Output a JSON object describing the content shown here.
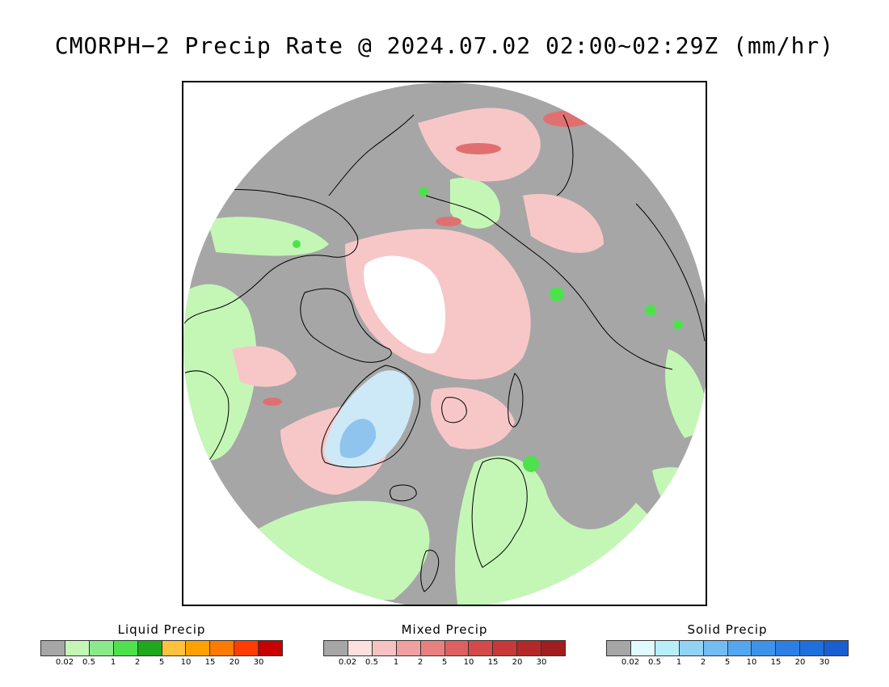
{
  "title": "CMORPH−2 Precip Rate @ 2024.07.02 02:00~02:29Z (mm/hr)",
  "map": {
    "projection": "polar-stereographic-north",
    "background_color": "#a6a6a6",
    "liquid_color": "#c4f7b6",
    "liquid_heavy_color": "#4de24d",
    "mixed_color": "#f7c7c7",
    "mixed_heavy_color": "#e07070",
    "solid_color": "#cde9f7",
    "solid_heavy_color": "#8fc4ef",
    "ice_color": "#ffffff",
    "coast_color": "#000000"
  },
  "legends": [
    {
      "title": "Liquid Precip",
      "colors": [
        "#a6a6a6",
        "#c4f7b6",
        "#8be88b",
        "#4de24d",
        "#1fa81f",
        "#ffc23d",
        "#ffa100",
        "#ff7a00",
        "#ff3d00",
        "#c80000"
      ],
      "ticks": [
        "0.02",
        "0.5",
        "1",
        "2",
        "5",
        "10",
        "15",
        "20",
        "30"
      ]
    },
    {
      "title": "Mixed Precip",
      "colors": [
        "#a6a6a6",
        "#fde0e0",
        "#f7c2c2",
        "#f0a0a0",
        "#e88080",
        "#df6060",
        "#d44a4a",
        "#c83838",
        "#b52828",
        "#a01e1e"
      ],
      "ticks": [
        "0.02",
        "0.5",
        "1",
        "2",
        "5",
        "10",
        "15",
        "20",
        "30"
      ]
    },
    {
      "title": "Solid Precip",
      "colors": [
        "#a6a6a6",
        "#e0fbff",
        "#b8eefa",
        "#92d2f5",
        "#72bcf2",
        "#54a7ef",
        "#3d93ea",
        "#2c80e4",
        "#1f6fdc",
        "#1a5fd0"
      ],
      "ticks": [
        "0.02",
        "0.5",
        "1",
        "2",
        "5",
        "10",
        "15",
        "20",
        "30"
      ]
    }
  ]
}
